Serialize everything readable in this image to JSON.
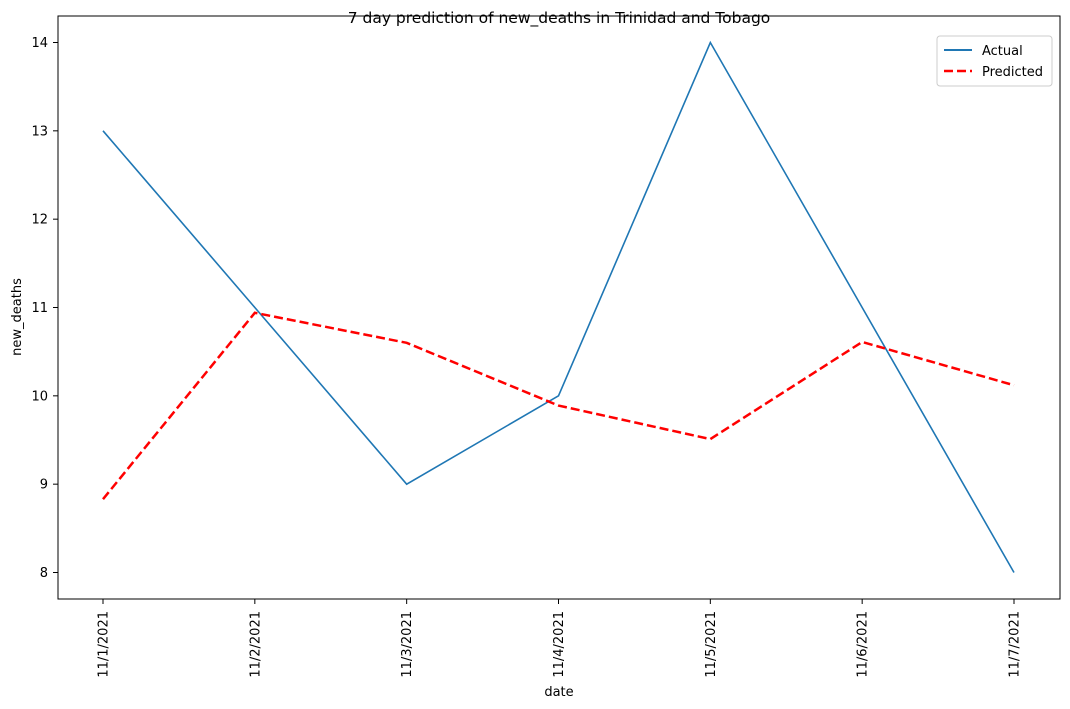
{
  "chart_data": {
    "type": "line",
    "title": "7 day prediction of new_deaths in Trinidad and Tobago",
    "xlabel": "date",
    "ylabel": "new_deaths",
    "categories": [
      "11/1/2021",
      "11/2/2021",
      "11/3/2021",
      "11/4/2021",
      "11/5/2021",
      "11/6/2021",
      "11/7/2021"
    ],
    "ylim": [
      7.7,
      14.3
    ],
    "yticks": [
      8,
      9,
      10,
      11,
      12,
      13,
      14
    ],
    "grid": false,
    "legend_position": "top-right",
    "series": [
      {
        "name": "Actual",
        "values": [
          13,
          11,
          9,
          10,
          14,
          11,
          8
        ],
        "color": "#1f77b4",
        "style": "solid"
      },
      {
        "name": "Predicted",
        "values": [
          8.83,
          10.94,
          10.6,
          9.89,
          9.51,
          10.61,
          10.12
        ],
        "color": "#ff0000",
        "style": "dashed"
      }
    ]
  }
}
